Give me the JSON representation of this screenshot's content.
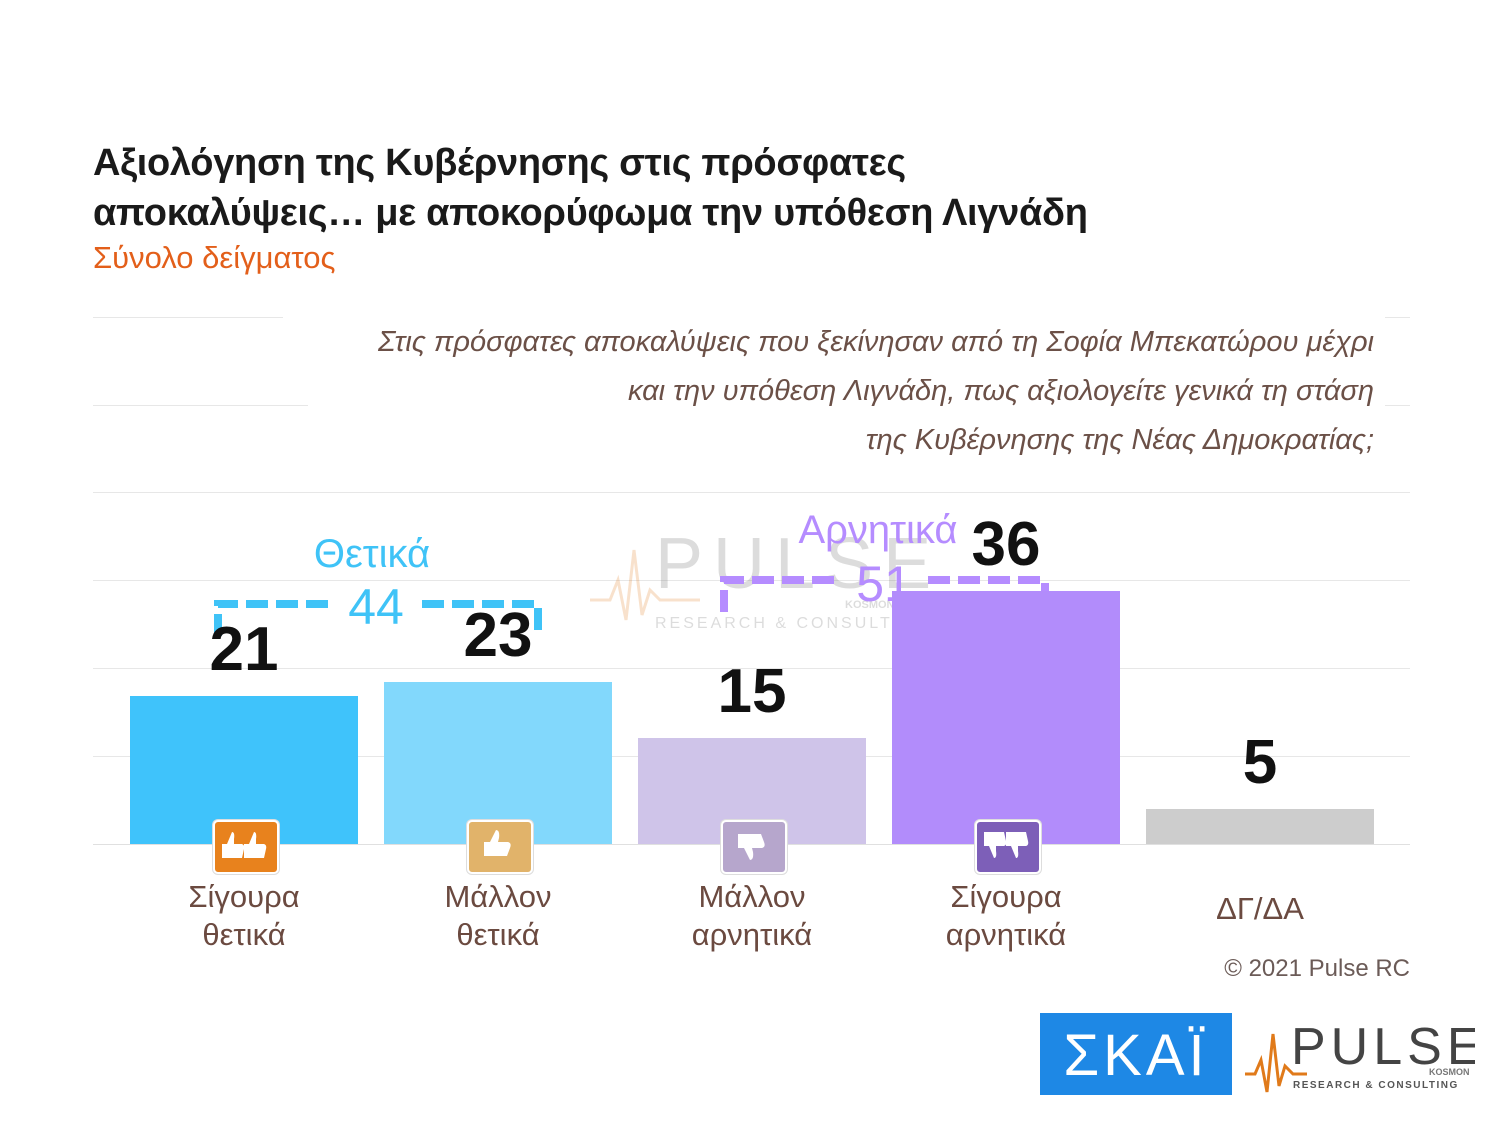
{
  "title_line1": "Αξιολόγηση της Κυβέρνησης στις πρόσφατες",
  "title_line2": "αποκαλύψεις… με αποκορύφωμα την υπόθεση Λιγνάδη",
  "subtitle": "Σύνολο δείγματος",
  "question_line1": "Στις πρόσφατες αποκαλύψεις που ξεκίνησαν από τη Σοφία Μπεκατώρου μέχρι",
  "question_line2": "και την υπόθεση Λιγνάδη, πως αξιολογείτε γενικά τη στάση",
  "question_line3": "της Κυβέρνησης της Νέας Δημοκρατίας;",
  "groups": {
    "positive": {
      "label": "Θετικά",
      "value": "44",
      "color": "#3fc3f7"
    },
    "negative": {
      "label": "Αρνητικά",
      "value": "51",
      "color": "#b58cff"
    }
  },
  "chart_data": {
    "type": "bar",
    "categories": [
      "Σίγουρα θετικά",
      "Μάλλον θετικά",
      "Μάλλον αρνητικά",
      "Σίγουρα αρνητικά",
      "ΔΓ/ΔΑ"
    ],
    "category_lines": [
      [
        "Σίγουρα",
        "θετικά"
      ],
      [
        "Μάλλον",
        "θετικά"
      ],
      [
        "Μάλλον",
        "αρνητικά"
      ],
      [
        "Σίγουρα",
        "αρνητικά"
      ],
      [
        "ΔΓ/ΔΑ",
        ""
      ]
    ],
    "values": [
      21,
      23,
      15,
      36,
      5
    ],
    "colors": [
      "#3fc3fb",
      "#82d8fc",
      "#cfc4e9",
      "#b28cfb",
      "#cdcdcd"
    ],
    "badge_colors": [
      "#e8821d",
      "#e1b36a",
      "#b6a6cc",
      "#7d5fb8",
      ""
    ],
    "badge_icons": [
      "two-thumbs-up-icon",
      "thumb-up-icon",
      "thumb-down-icon",
      "two-thumbs-down-icon",
      ""
    ],
    "ylim": [
      0,
      50
    ]
  },
  "watermark": {
    "brand": "PULSE",
    "tagline": "RESEARCH & CONSULTING",
    "sub": "KOSMON"
  },
  "copyright": "© 2021 Pulse RC",
  "logos": {
    "skai": "ΣΚΑΪ",
    "pulse": "PULSE",
    "pulse_tagline": "RESEARCH & CONSULTING",
    "pulse_sub": "KOSMON"
  }
}
